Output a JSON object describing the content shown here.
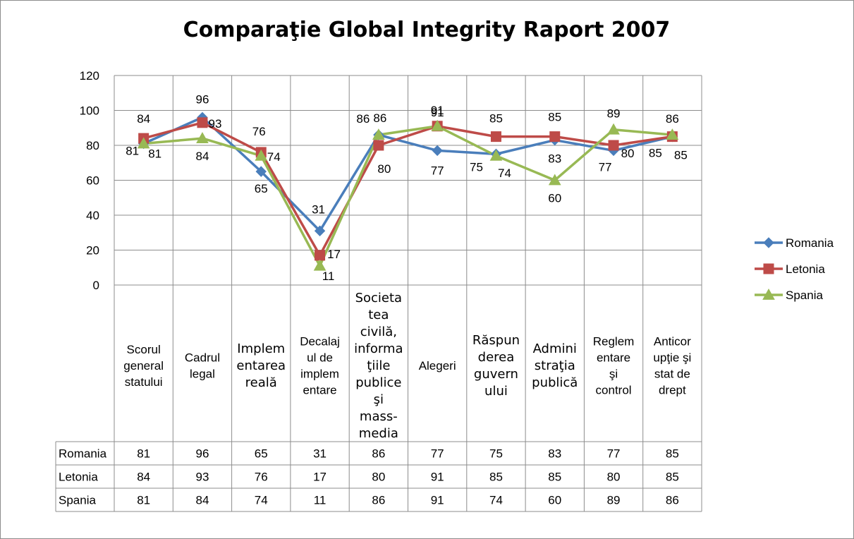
{
  "chart_data": {
    "type": "line",
    "title": "Comparaţie Global Integrity Raport 2007",
    "ylim": [
      0,
      120
    ],
    "yticks": [
      "0",
      "20",
      "40",
      "60",
      "80",
      "100",
      "120"
    ],
    "grid": true,
    "legend_position": "right",
    "categories": [
      [
        "Scorul",
        "general",
        "statului"
      ],
      [
        "Cadrul",
        "legal"
      ],
      [
        "Implem",
        "entarea",
        "reală"
      ],
      [
        "Decalaj",
        "ul de",
        "implem",
        "entare"
      ],
      [
        "Societa",
        "tea",
        "civilă,",
        "informa",
        "ţiile",
        "publice",
        "şi",
        "mass-",
        "media"
      ],
      [
        "Alegeri"
      ],
      [
        "Răspun",
        "derea",
        "guvern",
        "ului"
      ],
      [
        "Admini",
        "straţia",
        "publică"
      ],
      [
        "Reglem",
        "entare",
        "şi",
        "control"
      ],
      [
        "Anticor",
        "upţie şi",
        "stat de",
        "drept"
      ]
    ],
    "category_bold": [
      false,
      false,
      true,
      false,
      true,
      false,
      true,
      true,
      false,
      false
    ],
    "series": [
      {
        "name": "Romania",
        "color": "#4A7EBB",
        "marker": "diamond",
        "values": [
          81,
          96,
          65,
          31,
          86,
          77,
          75,
          83,
          77,
          85
        ]
      },
      {
        "name": "Letonia",
        "color": "#BE4B48",
        "marker": "square",
        "values": [
          84,
          93,
          76,
          17,
          80,
          91,
          85,
          85,
          80,
          85
        ]
      },
      {
        "name": "Spania",
        "color": "#98B954",
        "marker": "triangle",
        "values": [
          81,
          84,
          74,
          11,
          86,
          91,
          74,
          60,
          89,
          86
        ]
      }
    ],
    "data_table": true
  }
}
